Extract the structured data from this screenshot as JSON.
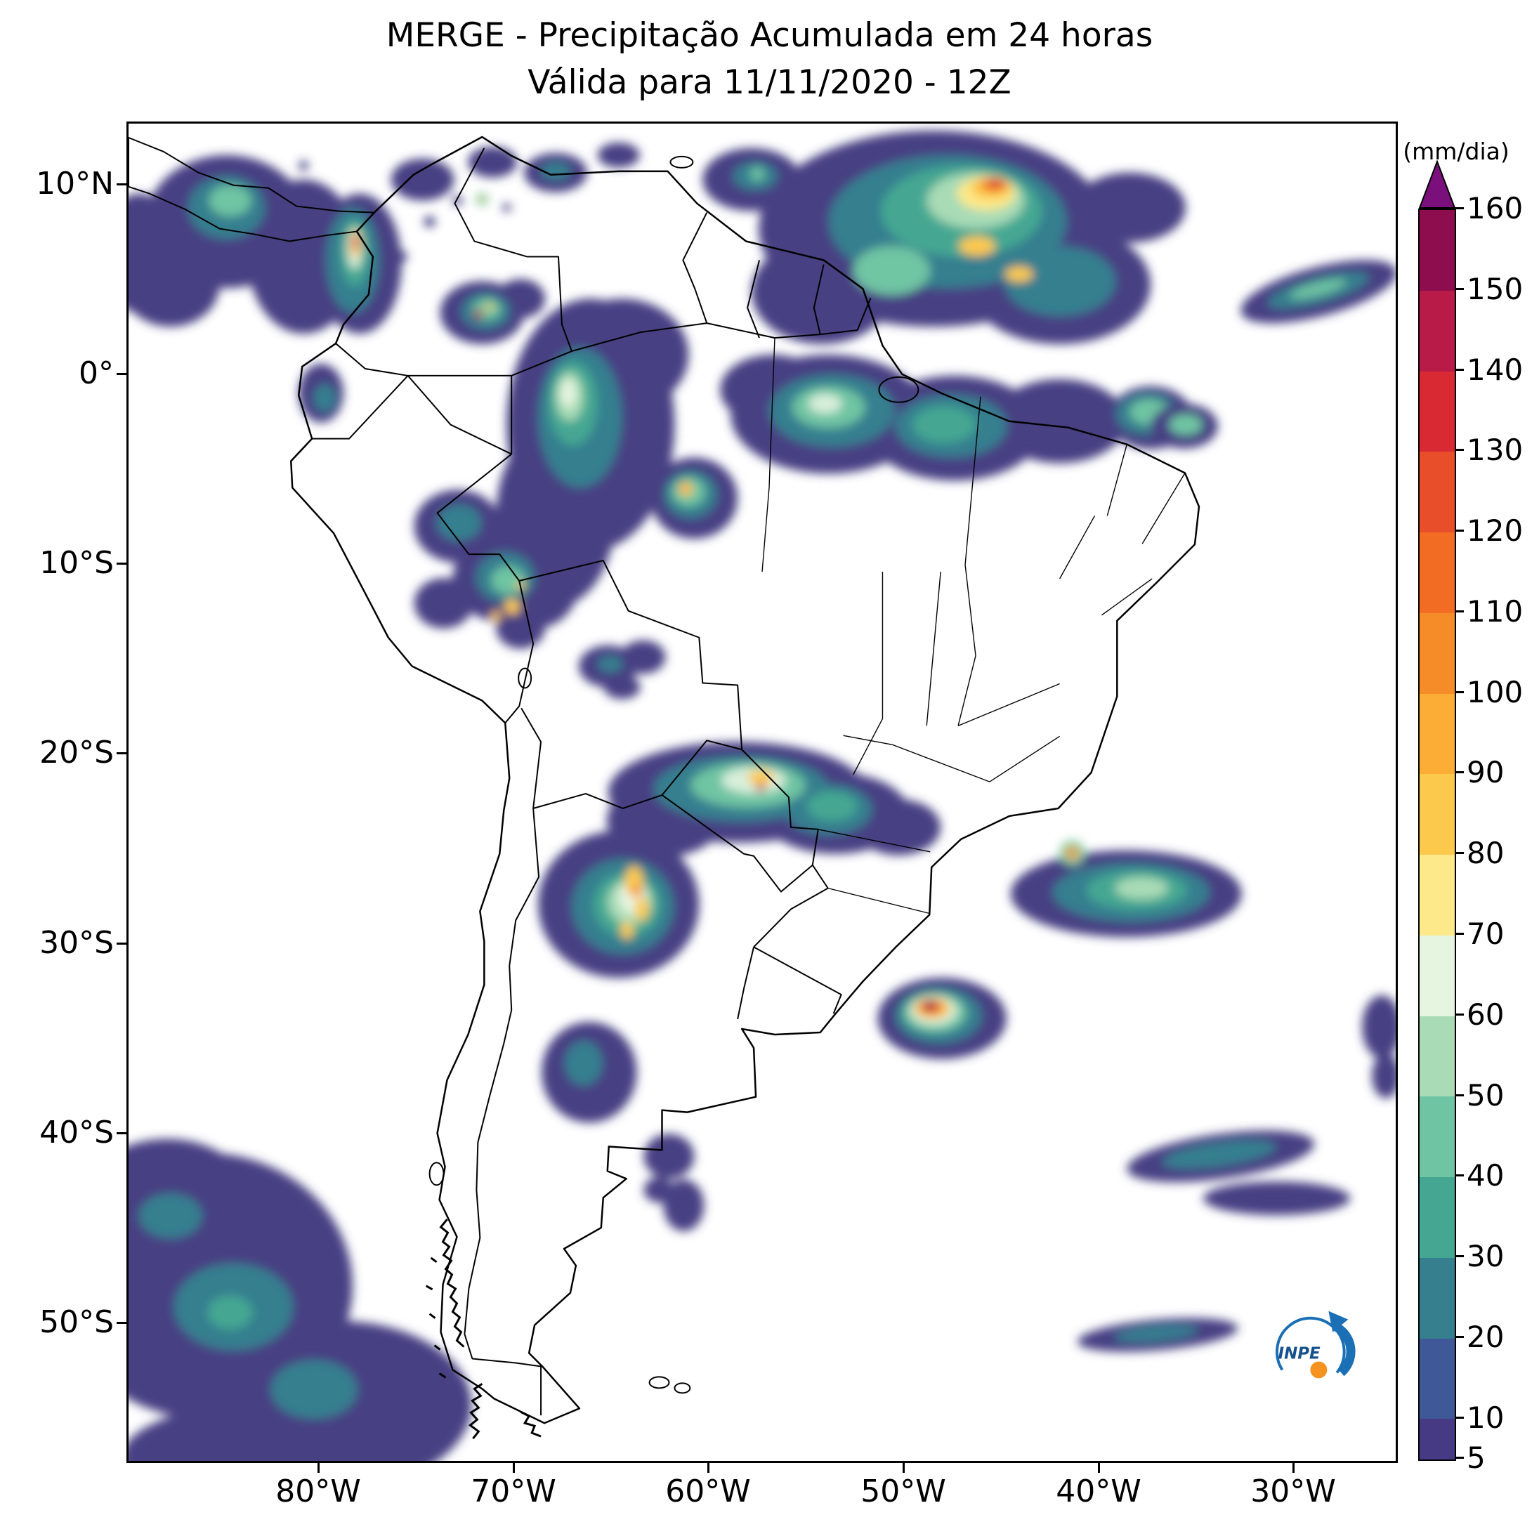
{
  "title": {
    "line1": "MERGE - Precipitação Acumulada em 24 horas",
    "line2": "Válida para 11/11/2020 - 12Z"
  },
  "axes": {
    "lat_ticks": [
      "10°N",
      "0°",
      "10°S",
      "20°S",
      "30°S",
      "40°S",
      "50°S"
    ],
    "lon_ticks": [
      "80°W",
      "70°W",
      "60°W",
      "50°W",
      "40°W",
      "30°W"
    ]
  },
  "colorbar": {
    "unit": "(mm/dia)",
    "tick_labels": [
      "160",
      "150",
      "140",
      "130",
      "120",
      "110",
      "100",
      "90",
      "80",
      "70",
      "60",
      "50",
      "40",
      "30",
      "20",
      "10",
      "5"
    ],
    "levels": [
      5,
      10,
      20,
      30,
      40,
      50,
      60,
      70,
      80,
      90,
      100,
      110,
      120,
      130,
      140,
      150,
      160
    ],
    "palette_top_to_bottom": [
      "#8e0d4e",
      "#b81b47",
      "#d92a33",
      "#e84e29",
      "#f26c23",
      "#f68c28",
      "#fbad35",
      "#fdc94d",
      "#fde98a",
      "#e6f5e0",
      "#a8dbb6",
      "#6fc5a3",
      "#45a792",
      "#357f8f",
      "#3f5897",
      "#473a85"
    ],
    "arrow_color": "#7b0f7c"
  },
  "logo": {
    "text": "INPE",
    "blue": "#1a6fb5",
    "orange": "#f6921e"
  }
}
